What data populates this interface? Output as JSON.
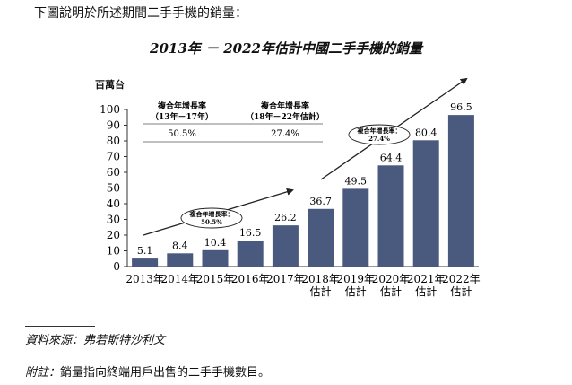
{
  "intro_text": "下圖說明於所述期間二手手機的銷量：",
  "chart_data": {
    "type": "bar",
    "title": "2013年 － 2022年估計中國二手手機的銷量",
    "ylabel": "百萬台",
    "ylim": [
      0,
      100
    ],
    "yticks": [
      0,
      10,
      20,
      30,
      40,
      50,
      60,
      70,
      80,
      90,
      100
    ],
    "categories": [
      [
        "2013年"
      ],
      [
        "2014年"
      ],
      [
        "2015年"
      ],
      [
        "2016年"
      ],
      [
        "2017年"
      ],
      [
        "2018年",
        "估計"
      ],
      [
        "2019年",
        "估計"
      ],
      [
        "2020年",
        "估計"
      ],
      [
        "2021年",
        "估計"
      ],
      [
        "2022年",
        "估計"
      ]
    ],
    "values": [
      5.1,
      8.4,
      10.4,
      16.5,
      26.2,
      36.7,
      49.5,
      64.4,
      80.4,
      96.5
    ],
    "value_labels": [
      "5.1",
      "8.4",
      "10.4",
      "16.5",
      "26.2",
      "36.7",
      "49.5",
      "64.4",
      "80.4",
      "96.5"
    ],
    "bar_color": "#4a5a7e",
    "cagr_table": {
      "headers": [
        [
          "複合年增長率",
          "（13年－17年）"
        ],
        [
          "複合年增長率",
          "（18年－22年估計）"
        ]
      ],
      "values": [
        "50.5%",
        "27.4%"
      ]
    },
    "annotations": [
      {
        "lines": [
          "複合年增長率：",
          "50.5%"
        ]
      },
      {
        "lines": [
          "複合年增長率：",
          "27.4%"
        ]
      }
    ]
  },
  "source_text": "資料來源：弗若斯特沙利文",
  "note_label": "附註：",
  "note_text": "銷量指向終端用戶出售的二手手機數目。"
}
